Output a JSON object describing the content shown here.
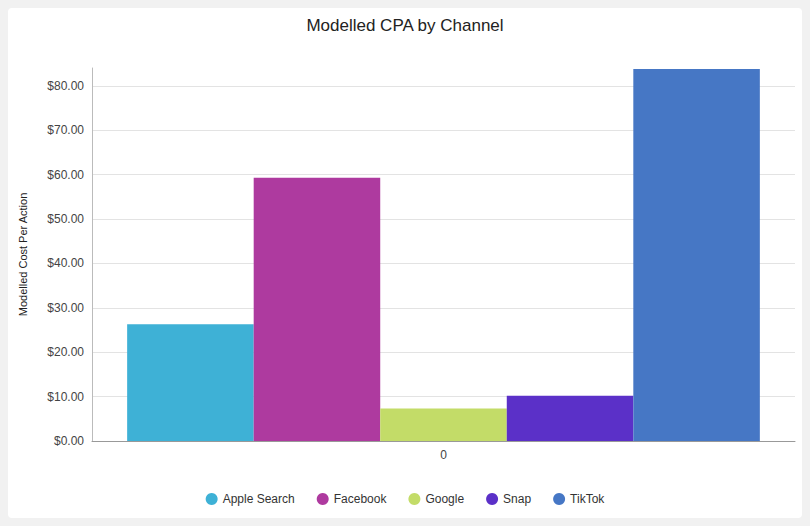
{
  "chart_data": {
    "type": "bar",
    "title": "Modelled CPA by Channel",
    "y_label": "Modelled Cost Per Action",
    "categories": [
      "0"
    ],
    "series": [
      {
        "name": "Apple Search",
        "color": "#3eb1d6",
        "values": [
          26.3
        ]
      },
      {
        "name": "Facebook",
        "color": "#ae3a9f",
        "values": [
          59.3
        ]
      },
      {
        "name": "Google",
        "color": "#c3dc68",
        "values": [
          7.3
        ]
      },
      {
        "name": "Snap",
        "color": "#5b30c8",
        "values": [
          10.2
        ]
      },
      {
        "name": "TikTok",
        "color": "#4677c5",
        "values": [
          83.8
        ]
      }
    ],
    "ylim": [
      0,
      84
    ],
    "yticks": [
      {
        "value": 0,
        "label": "$0.00"
      },
      {
        "value": 10,
        "label": "$10.00"
      },
      {
        "value": 20,
        "label": "$20.00"
      },
      {
        "value": 30,
        "label": "$30.00"
      },
      {
        "value": 40,
        "label": "$40.00"
      },
      {
        "value": 50,
        "label": "$50.00"
      },
      {
        "value": 60,
        "label": "$60.00"
      },
      {
        "value": 70,
        "label": "$70.00"
      },
      {
        "value": 80,
        "label": "$80.00"
      }
    ],
    "grid": true,
    "legend": "bottom"
  }
}
